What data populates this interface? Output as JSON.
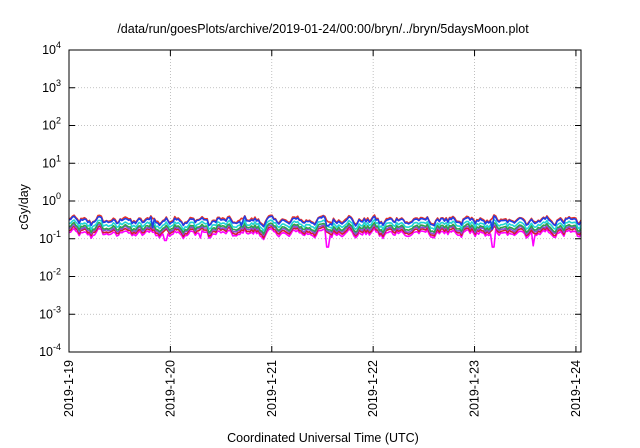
{
  "chart_data": {
    "type": "line",
    "title": "/data/run/goesPlots/archive/2019-01-24/00:00/bryn/../bryn/5daysMoon.plot",
    "xlabel": "Coordinated Universal Time (UTC)",
    "ylabel": "cGy/day",
    "y_scale": "log",
    "ylim": [
      0.0001,
      10000
    ],
    "y_ticks": [
      {
        "base": "10",
        "exp": "4",
        "value": 10000
      },
      {
        "base": "10",
        "exp": "3",
        "value": 1000
      },
      {
        "base": "10",
        "exp": "2",
        "value": 100
      },
      {
        "base": "10",
        "exp": "1",
        "value": 10
      },
      {
        "base": "10",
        "exp": "0",
        "value": 1
      },
      {
        "base": "10",
        "exp": "-1",
        "value": 0.1
      },
      {
        "base": "10",
        "exp": "-2",
        "value": 0.01
      },
      {
        "base": "10",
        "exp": "-3",
        "value": 0.001
      },
      {
        "base": "10",
        "exp": "-4",
        "value": 0.0001
      }
    ],
    "x_domain_days": [
      0,
      5.05
    ],
    "x_ticks": [
      {
        "label": "2019-1-19",
        "day": 0
      },
      {
        "label": "2019-1-20",
        "day": 1
      },
      {
        "label": "2019-1-21",
        "day": 2
      },
      {
        "label": "2019-1-22",
        "day": 3
      },
      {
        "label": "2019-1-23",
        "day": 4
      },
      {
        "label": "2019-1-24",
        "day": 5
      }
    ],
    "grid": true,
    "series": [
      {
        "color": "#ff00ff",
        "base": 0.14,
        "dips": [
          [
            0.95,
            0.09
          ],
          [
            1.3,
            0.105
          ],
          [
            2.55,
            0.06
          ],
          [
            4.18,
            0.06
          ],
          [
            4.58,
            0.065
          ]
        ]
      },
      {
        "color": "#d11d2e",
        "base": 0.16,
        "dips": []
      },
      {
        "color": "#8a4bd8",
        "base": 0.18,
        "dips": []
      },
      {
        "color": "#2ea24a",
        "base": 0.2,
        "dips": []
      },
      {
        "color": "#20d4d4",
        "base": 0.24,
        "dips": []
      },
      {
        "color": "#e8352a",
        "base": 0.32,
        "dips": []
      },
      {
        "color": "#1f3de6",
        "base": 0.3,
        "dips": [
          [
            0.82,
            0.2
          ],
          [
            1.7,
            0.22
          ],
          [
            2.55,
            0.22
          ],
          [
            4.17,
            0.18
          ]
        ]
      }
    ]
  }
}
